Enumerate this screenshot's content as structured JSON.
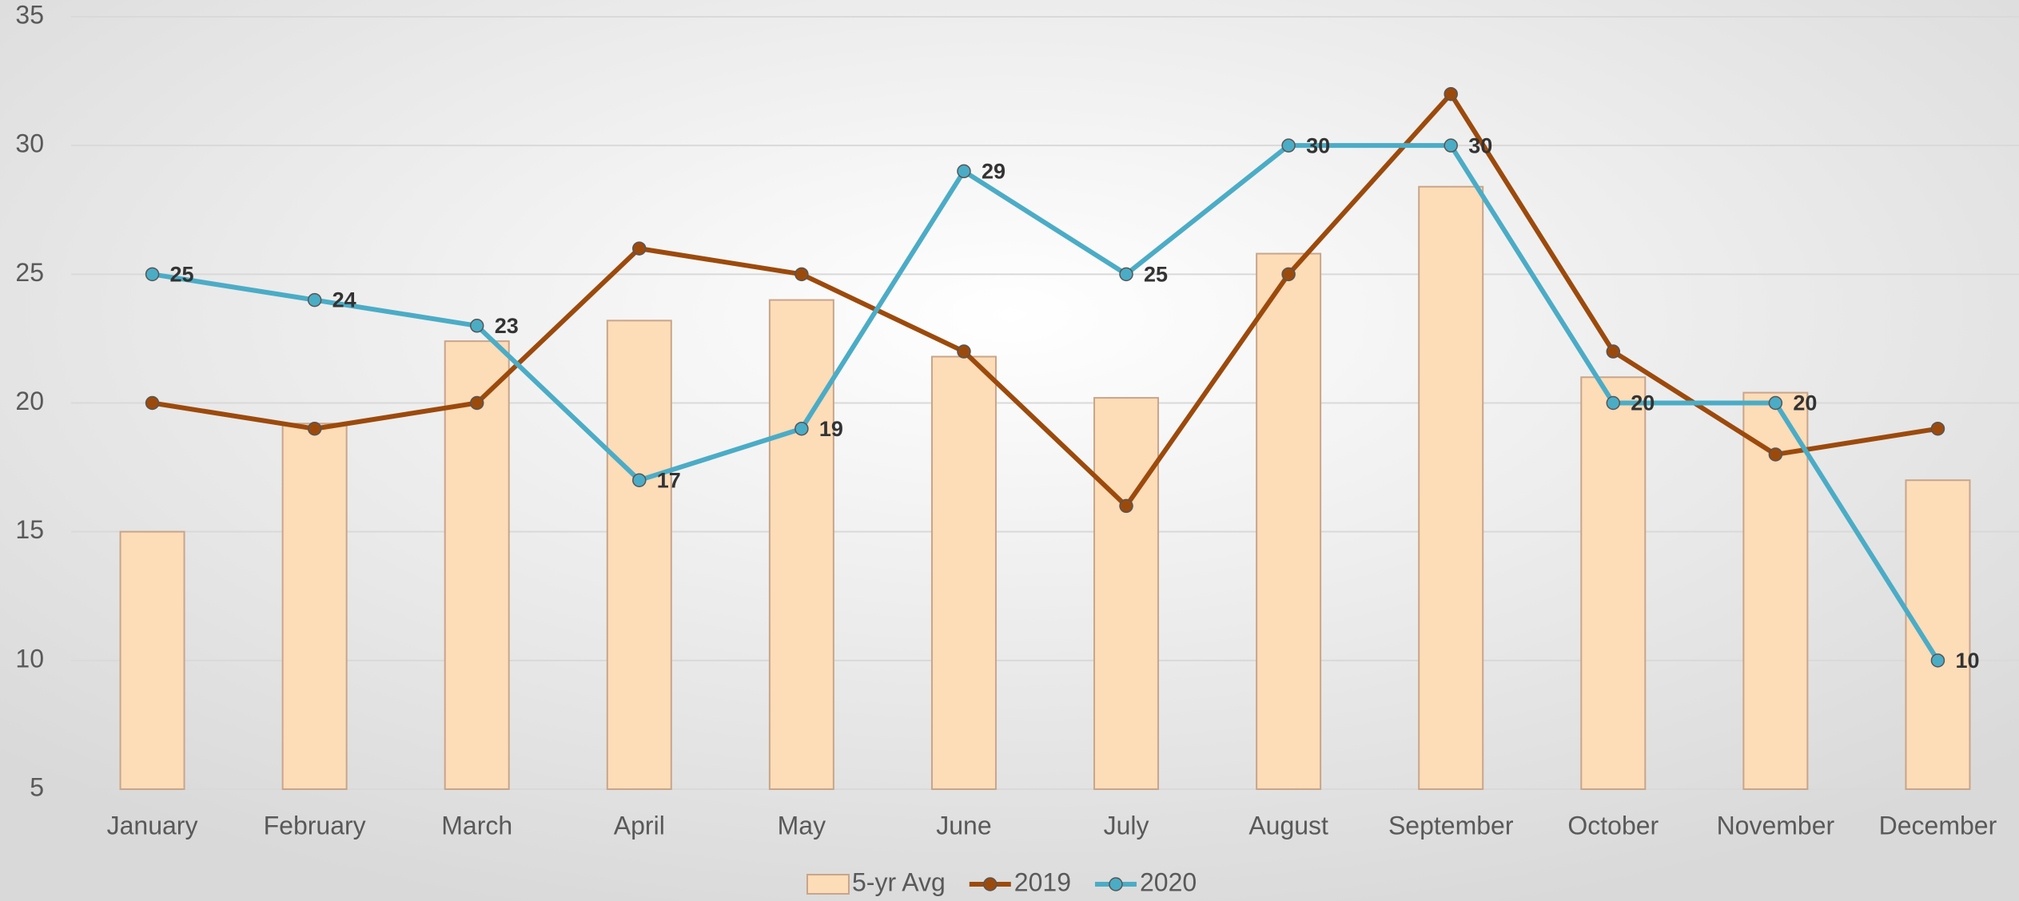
{
  "chart_data": {
    "type": "bar-line",
    "categories": [
      "January",
      "February",
      "March",
      "April",
      "May",
      "June",
      "July",
      "August",
      "September",
      "October",
      "November",
      "December"
    ],
    "series": [
      {
        "name": "5-yr Avg",
        "type": "bar",
        "color": "#fddcb8",
        "values": [
          15,
          19.2,
          22.4,
          23.2,
          24,
          21.8,
          20.2,
          25.8,
          28.4,
          21,
          20.4,
          17
        ]
      },
      {
        "name": "2019",
        "type": "line",
        "color": "#9c4a0c",
        "values": [
          20,
          19,
          20,
          26,
          25,
          22,
          16,
          25,
          32,
          22,
          18,
          19
        ]
      },
      {
        "name": "2020",
        "type": "line",
        "color": "#4bacc6",
        "values": [
          25,
          24,
          23,
          17,
          19,
          29,
          25,
          30,
          30,
          20,
          20,
          10
        ],
        "data_labels": true
      }
    ],
    "ylim": [
      5,
      35
    ],
    "yticks": [
      5,
      10,
      15,
      20,
      25,
      30,
      35
    ],
    "grid": true,
    "legend": "bottom"
  }
}
